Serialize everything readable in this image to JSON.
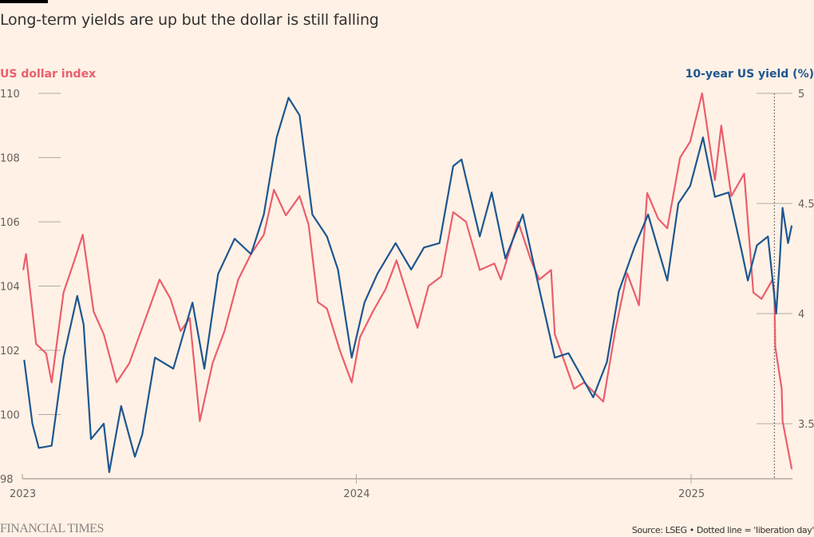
{
  "chart_data": {
    "type": "line",
    "title": "Long-term yields are up but the dollar is still falling",
    "left_axis": {
      "label": "US dollar index",
      "ticks": [
        98,
        100,
        102,
        104,
        106,
        108,
        110
      ],
      "range": [
        98,
        110
      ],
      "color": "#eb5e6d"
    },
    "right_axis": {
      "label": "10-year US yield (%)",
      "ticks": [
        3.5,
        4,
        4.5,
        5
      ],
      "tick_labels": [
        "3.5",
        "4",
        "4.5",
        "5"
      ],
      "range": [
        3.25,
        5
      ],
      "color": "#1d5690"
    },
    "x_axis": {
      "ticks": [
        "2023",
        "2024",
        "2025"
      ],
      "range": [
        "2023-01-01",
        "2025-04-22"
      ]
    },
    "annotation": {
      "type": "dotted-vertical-line",
      "date": "2025-04-02",
      "meaning": "liberation day"
    },
    "grid": false,
    "series": [
      {
        "name": "US dollar index",
        "axis": "left",
        "color": "#eb5e6d",
        "points": [
          [
            "2023-01-02",
            104.5
          ],
          [
            "2023-01-05",
            105.0
          ],
          [
            "2023-01-16",
            102.2
          ],
          [
            "2023-01-27",
            101.9
          ],
          [
            "2023-02-02",
            101.0
          ],
          [
            "2023-02-15",
            103.8
          ],
          [
            "2023-02-27",
            104.8
          ],
          [
            "2023-03-08",
            105.6
          ],
          [
            "2023-03-20",
            103.2
          ],
          [
            "2023-03-31",
            102.5
          ],
          [
            "2023-04-14",
            101.0
          ],
          [
            "2023-04-28",
            101.6
          ],
          [
            "2023-05-12",
            102.7
          ],
          [
            "2023-05-31",
            104.2
          ],
          [
            "2023-06-12",
            103.6
          ],
          [
            "2023-06-23",
            102.6
          ],
          [
            "2023-07-03",
            103.0
          ],
          [
            "2023-07-14",
            99.8
          ],
          [
            "2023-07-28",
            101.6
          ],
          [
            "2023-08-10",
            102.6
          ],
          [
            "2023-08-25",
            104.2
          ],
          [
            "2023-09-08",
            105.0
          ],
          [
            "2023-09-22",
            105.6
          ],
          [
            "2023-10-03",
            107.0
          ],
          [
            "2023-10-16",
            106.2
          ],
          [
            "2023-10-31",
            106.8
          ],
          [
            "2023-11-10",
            105.9
          ],
          [
            "2023-11-20",
            103.5
          ],
          [
            "2023-11-30",
            103.3
          ],
          [
            "2023-12-14",
            102.0
          ],
          [
            "2023-12-27",
            101.0
          ],
          [
            "2024-01-05",
            102.4
          ],
          [
            "2024-01-19",
            103.2
          ],
          [
            "2024-02-02",
            103.9
          ],
          [
            "2024-02-14",
            104.8
          ],
          [
            "2024-03-08",
            102.7
          ],
          [
            "2024-03-20",
            104.0
          ],
          [
            "2024-04-03",
            104.3
          ],
          [
            "2024-04-16",
            106.3
          ],
          [
            "2024-04-30",
            106.0
          ],
          [
            "2024-05-15",
            104.5
          ],
          [
            "2024-05-31",
            104.7
          ],
          [
            "2024-06-07",
            104.2
          ],
          [
            "2024-06-26",
            106.0
          ],
          [
            "2024-07-10",
            104.8
          ],
          [
            "2024-07-19",
            104.2
          ],
          [
            "2024-08-01",
            104.5
          ],
          [
            "2024-08-05",
            102.5
          ],
          [
            "2024-08-26",
            100.8
          ],
          [
            "2024-09-06",
            101.0
          ],
          [
            "2024-09-27",
            100.4
          ],
          [
            "2024-10-10",
            102.6
          ],
          [
            "2024-10-23",
            104.4
          ],
          [
            "2024-11-05",
            103.4
          ],
          [
            "2024-11-14",
            106.9
          ],
          [
            "2024-11-26",
            106.1
          ],
          [
            "2024-12-06",
            105.8
          ],
          [
            "2024-12-20",
            108.0
          ],
          [
            "2024-12-31",
            108.5
          ],
          [
            "2025-01-13",
            110.0
          ],
          [
            "2025-01-27",
            107.3
          ],
          [
            "2025-02-03",
            109.0
          ],
          [
            "2025-02-14",
            106.8
          ],
          [
            "2025-02-28",
            107.5
          ],
          [
            "2025-03-10",
            103.8
          ],
          [
            "2025-03-19",
            103.6
          ],
          [
            "2025-03-31",
            104.2
          ],
          [
            "2025-04-02",
            103.8
          ],
          [
            "2025-04-03",
            102.1
          ],
          [
            "2025-04-10",
            100.8
          ],
          [
            "2025-04-11",
            99.8
          ],
          [
            "2025-04-21",
            98.3
          ]
        ]
      },
      {
        "name": "10-year US yield (%)",
        "axis": "right",
        "color": "#1d5690",
        "points": [
          [
            "2023-01-03",
            3.79
          ],
          [
            "2023-01-12",
            3.5
          ],
          [
            "2023-01-19",
            3.39
          ],
          [
            "2023-02-02",
            3.4
          ],
          [
            "2023-02-15",
            3.8
          ],
          [
            "2023-03-02",
            4.08
          ],
          [
            "2023-03-09",
            3.95
          ],
          [
            "2023-03-17",
            3.43
          ],
          [
            "2023-03-31",
            3.5
          ],
          [
            "2023-04-06",
            3.28
          ],
          [
            "2023-04-19",
            3.58
          ],
          [
            "2023-05-04",
            3.35
          ],
          [
            "2023-05-12",
            3.45
          ],
          [
            "2023-05-26",
            3.8
          ],
          [
            "2023-06-15",
            3.75
          ],
          [
            "2023-07-06",
            4.05
          ],
          [
            "2023-07-19",
            3.75
          ],
          [
            "2023-08-03",
            4.18
          ],
          [
            "2023-08-21",
            4.34
          ],
          [
            "2023-09-08",
            4.27
          ],
          [
            "2023-09-22",
            4.45
          ],
          [
            "2023-10-06",
            4.8
          ],
          [
            "2023-10-19",
            4.98
          ],
          [
            "2023-10-31",
            4.9
          ],
          [
            "2023-11-14",
            4.45
          ],
          [
            "2023-11-30",
            4.35
          ],
          [
            "2023-12-12",
            4.2
          ],
          [
            "2023-12-27",
            3.8
          ],
          [
            "2024-01-10",
            4.05
          ],
          [
            "2024-01-24",
            4.18
          ],
          [
            "2024-02-13",
            4.32
          ],
          [
            "2024-03-01",
            4.2
          ],
          [
            "2024-03-15",
            4.3
          ],
          [
            "2024-04-01",
            4.32
          ],
          [
            "2024-04-16",
            4.67
          ],
          [
            "2024-04-25",
            4.7
          ],
          [
            "2024-05-15",
            4.35
          ],
          [
            "2024-05-28",
            4.55
          ],
          [
            "2024-06-12",
            4.25
          ],
          [
            "2024-07-01",
            4.45
          ],
          [
            "2024-07-17",
            4.15
          ],
          [
            "2024-08-05",
            3.8
          ],
          [
            "2024-08-20",
            3.82
          ],
          [
            "2024-09-16",
            3.62
          ],
          [
            "2024-10-01",
            3.78
          ],
          [
            "2024-10-14",
            4.1
          ],
          [
            "2024-10-31",
            4.3
          ],
          [
            "2024-11-15",
            4.45
          ],
          [
            "2024-12-06",
            4.15
          ],
          [
            "2024-12-18",
            4.5
          ],
          [
            "2024-12-31",
            4.58
          ],
          [
            "2025-01-14",
            4.8
          ],
          [
            "2025-01-27",
            4.53
          ],
          [
            "2025-02-11",
            4.55
          ],
          [
            "2025-02-26",
            4.27
          ],
          [
            "2025-03-04",
            4.15
          ],
          [
            "2025-03-14",
            4.31
          ],
          [
            "2025-03-26",
            4.35
          ],
          [
            "2025-04-04",
            4.0
          ],
          [
            "2025-04-08",
            4.25
          ],
          [
            "2025-04-11",
            4.48
          ],
          [
            "2025-04-17",
            4.32
          ],
          [
            "2025-04-21",
            4.4
          ]
        ]
      }
    ]
  },
  "footer": {
    "brand": "FINANCIAL TIMES",
    "source": "Source: LSEG • Dotted line = 'liberation day'"
  }
}
